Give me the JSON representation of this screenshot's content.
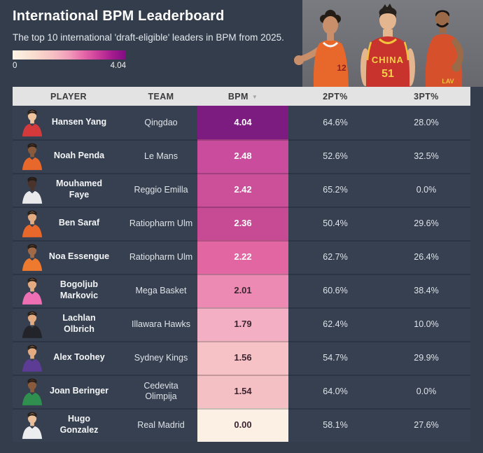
{
  "header": {
    "title": "International BPM Leaderboard",
    "subtitle": "The top 10 international 'draft-eligible' leaders in BPM from 2025."
  },
  "legend": {
    "min_label": "0",
    "max_label": "4.04",
    "gradient_start": "#fdf4e8",
    "gradient_mid": "#cc3f9b",
    "gradient_end": "#7f0d82"
  },
  "collage": {
    "background": "#6f7076",
    "left_player": {
      "jersey_color": "#e8682c",
      "jersey_number": "12",
      "skin": "#c98f6a"
    },
    "center_player": {
      "jersey_color": "#c8332d",
      "jersey_text": "CHINA",
      "jersey_number": "51",
      "trim": "#f2c43c",
      "skin": "#e3b68f"
    },
    "right_player": {
      "jersey_color": "#d6502c",
      "jersey_text": "LAV",
      "skin": "#9b6a48"
    }
  },
  "table": {
    "columns": [
      {
        "label": "PLAYER"
      },
      {
        "label": "TEAM"
      },
      {
        "label": "BPM"
      },
      {
        "label": "2PT%"
      },
      {
        "label": "3PT%"
      }
    ],
    "sort_column": "BPM",
    "sort_direction": "desc",
    "rows": [
      {
        "player": "Hansen Yang",
        "team": "Qingdao",
        "bpm": "4.04",
        "two_pt": "64.6%",
        "three_pt": "28.0%",
        "bpm_color": "#7c1b80",
        "bpm_text_color": "#ffffff",
        "avatar": {
          "jersey": "#d43a3c",
          "skin": "#f0c49e"
        }
      },
      {
        "player": "Noah Penda",
        "team": "Le Mans",
        "bpm": "2.48",
        "two_pt": "52.6%",
        "three_pt": "32.5%",
        "bpm_color": "#c94d9c",
        "bpm_text_color": "#ffffff",
        "avatar": {
          "jersey": "#e8682c",
          "skin": "#8a5a3c"
        }
      },
      {
        "player": "Mouhamed Faye",
        "team": "Reggio Emilla",
        "bpm": "2.42",
        "two_pt": "65.2%",
        "three_pt": "0.0%",
        "bpm_color": "#cb4f99",
        "bpm_text_color": "#ffffff",
        "avatar": {
          "jersey": "#e9e9ec",
          "skin": "#4a332a"
        }
      },
      {
        "player": "Ben Saraf",
        "team": "Ratiopharm Ulm",
        "bpm": "2.36",
        "two_pt": "50.4%",
        "three_pt": "29.6%",
        "bpm_color": "#c74a95",
        "bpm_text_color": "#ffffff",
        "avatar": {
          "jersey": "#e8682c",
          "skin": "#e2ab82"
        }
      },
      {
        "player": "Noa Essengue",
        "team": "Ratiopharm Ulm",
        "bpm": "2.22",
        "two_pt": "62.7%",
        "three_pt": "26.4%",
        "bpm_color": "#e266a2",
        "bpm_text_color": "#ffffff",
        "avatar": {
          "jersey": "#ed7a2f",
          "skin": "#a06a48"
        }
      },
      {
        "player": "Bogoljub Markovic",
        "team": "Mega Basket",
        "bpm": "2.01",
        "two_pt": "60.6%",
        "three_pt": "38.4%",
        "bpm_color": "#ec8ab4",
        "bpm_text_color": "#3c2530",
        "avatar": {
          "jersey": "#ef6fb5",
          "skin": "#e2ab82"
        }
      },
      {
        "player": "Lachlan Olbrich",
        "team": "Illawara Hawks",
        "bpm": "1.79",
        "two_pt": "62.4%",
        "three_pt": "10.0%",
        "bpm_color": "#f3afc4",
        "bpm_text_color": "#3c2530",
        "avatar": {
          "jersey": "#23242a",
          "skin": "#e2ab82"
        }
      },
      {
        "player": "Alex Toohey",
        "team": "Sydney Kings",
        "bpm": "1.56",
        "two_pt": "54.7%",
        "three_pt": "29.9%",
        "bpm_color": "#f6c2c6",
        "bpm_text_color": "#3c2530",
        "avatar": {
          "jersey": "#5c3c94",
          "skin": "#e2ab82"
        }
      },
      {
        "player": "Joan Beringer",
        "team": "Cedevita Olimpija",
        "bpm": "1.54",
        "two_pt": "64.0%",
        "three_pt": "0.0%",
        "bpm_color": "#f5c0c3",
        "bpm_text_color": "#3c2530",
        "avatar": {
          "jersey": "#2e8f4e",
          "skin": "#8a5a3c"
        }
      },
      {
        "player": "Hugo Gonzalez",
        "team": "Real Madrid",
        "bpm": "0.00",
        "two_pt": "58.1%",
        "three_pt": "27.6%",
        "bpm_color": "#fbf0e3",
        "bpm_text_color": "#3c2530",
        "avatar": {
          "jersey": "#ecedef",
          "skin": "#e9c09b"
        }
      }
    ]
  }
}
